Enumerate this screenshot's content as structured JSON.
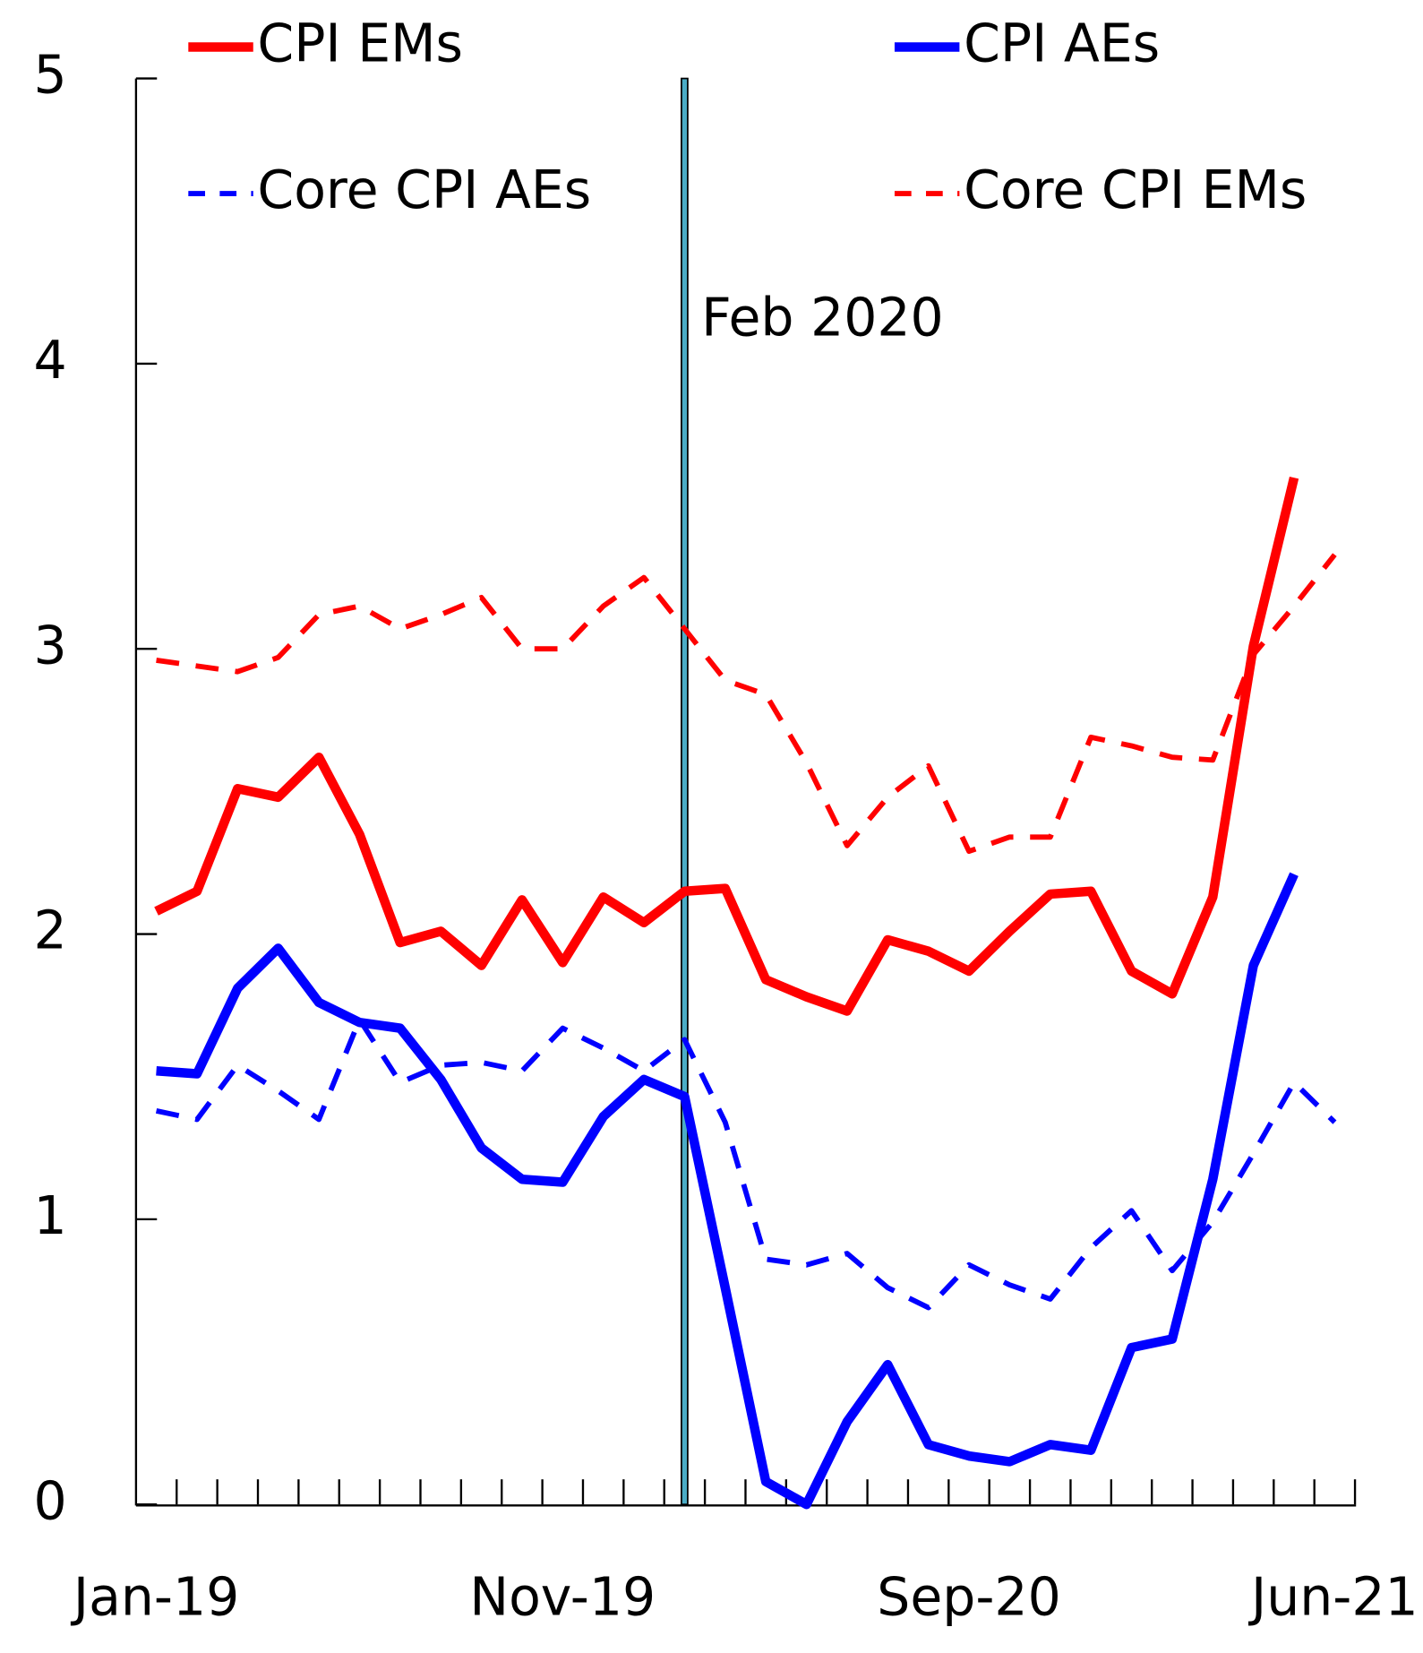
{
  "chart_data": {
    "type": "line",
    "categories": [
      "Jan-19",
      null,
      null,
      null,
      null,
      null,
      null,
      null,
      null,
      null,
      "Nov-19",
      null,
      null,
      null,
      null,
      null,
      null,
      null,
      null,
      null,
      "Sep-20",
      null,
      null,
      null,
      null,
      null,
      null,
      null,
      null,
      "Jun-21"
    ],
    "series": [
      {
        "name": "CPI EMs",
        "color": "#ff0000",
        "dashed": false,
        "values": [
          2.08,
          2.15,
          2.51,
          2.48,
          2.62,
          2.35,
          1.97,
          2.01,
          1.89,
          2.12,
          1.9,
          2.13,
          2.04,
          2.15,
          2.16,
          1.84,
          1.78,
          1.73,
          1.98,
          1.94,
          1.87,
          2.01,
          2.14,
          2.15,
          1.87,
          1.79,
          2.13,
          3.01,
          3.6,
          null
        ]
      },
      {
        "name": "CPI AEs",
        "color": "#0000ff",
        "dashed": false,
        "values": [
          1.52,
          1.51,
          1.81,
          1.95,
          1.76,
          1.69,
          1.67,
          1.49,
          1.25,
          1.14,
          1.13,
          1.36,
          1.49,
          1.43,
          0.76,
          0.08,
          0.0,
          0.29,
          0.49,
          0.21,
          0.17,
          0.15,
          0.21,
          0.19,
          0.55,
          0.58,
          1.14,
          1.89,
          2.21,
          null
        ]
      },
      {
        "name": "Core CPI AEs",
        "color": "#0000ff",
        "dashed": true,
        "values": [
          1.38,
          1.35,
          1.54,
          1.45,
          1.35,
          1.7,
          1.48,
          1.54,
          1.55,
          1.52,
          1.67,
          1.6,
          1.52,
          1.63,
          1.34,
          0.86,
          0.84,
          0.88,
          0.76,
          0.69,
          0.84,
          0.77,
          0.72,
          0.9,
          1.03,
          0.82,
          0.99,
          1.23,
          1.48,
          1.34
        ]
      },
      {
        "name": "Core CPI EMs",
        "color": "#ff0000",
        "dashed": true,
        "values": [
          2.96,
          2.94,
          2.92,
          2.97,
          3.12,
          3.15,
          3.07,
          3.12,
          3.18,
          3.0,
          3.0,
          3.15,
          3.25,
          3.07,
          2.89,
          2.84,
          2.6,
          2.31,
          2.48,
          2.59,
          2.29,
          2.34,
          2.34,
          2.69,
          2.66,
          2.62,
          2.61,
          2.98,
          3.15,
          3.33
        ]
      }
    ],
    "vline": {
      "index": 13,
      "label": "Feb 2020",
      "color": "#4bacc6"
    },
    "ylim": [
      0,
      5
    ],
    "yticks": [
      0,
      1,
      2,
      3,
      4,
      5
    ],
    "grid": false
  }
}
